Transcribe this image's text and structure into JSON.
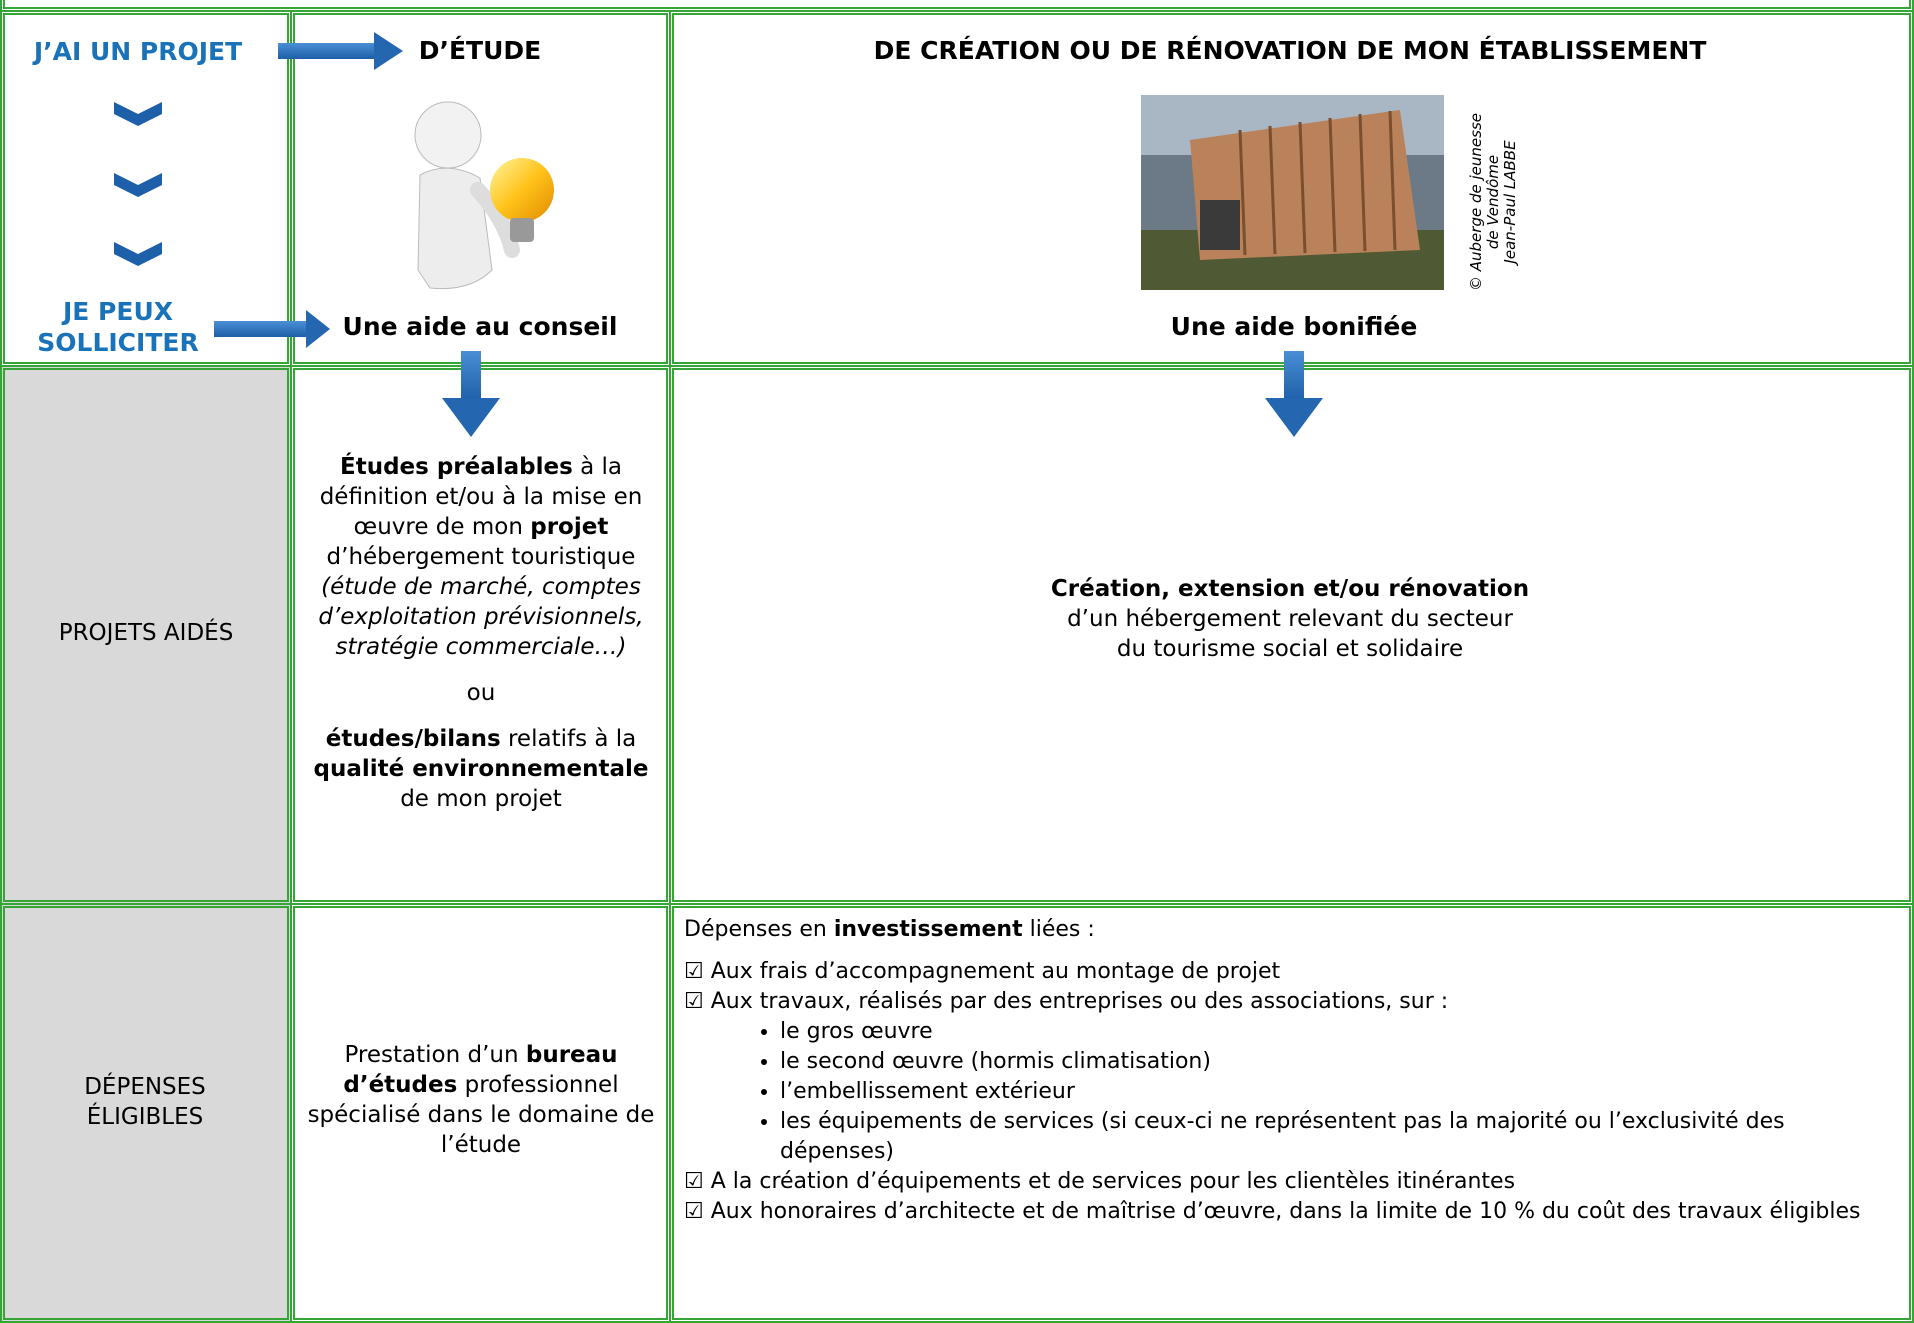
{
  "header": {
    "ask": "J’AI UN PROJET",
    "can_request": "JE PEUX SOLLICITER",
    "study_title": "D’ÉTUDE",
    "study_aid": "Une aide au conseil",
    "build_title": "DE CRÉATION OU DE RÉNOVATION DE MON ÉTABLISSEMENT",
    "photo_credit": [
      "© Auberge de jeunesse",
      "de Vendôme",
      "Jean-Paul LABBE"
    ],
    "build_aid": "Une aide bonifiée"
  },
  "rows": [
    {
      "label": "PROJETS AIDÉS",
      "study": [
        {
          "kind": "p",
          "segments": [
            {
              "text": "Études préalables",
              "bold": true
            },
            {
              "text": " à la définition et/ou à la mise en œuvre de mon "
            },
            {
              "text": "projet",
              "bold": true
            },
            {
              "text": " d’hébergement touristique "
            },
            {
              "text": "(étude de marché, comptes d’exploitation prévisionnels, stratégie commerciale…)",
              "italic": true
            }
          ]
        },
        {
          "kind": "p",
          "segments": [
            {
              "text": "ou"
            }
          ]
        },
        {
          "kind": "p",
          "segments": [
            {
              "text": "études/bilans",
              "bold": true
            },
            {
              "text": " relatifs à la "
            },
            {
              "text": "qualité environnementale",
              "bold": true
            },
            {
              "text": " de mon projet"
            }
          ]
        }
      ],
      "build": [
        {
          "kind": "line",
          "segments": [
            {
              "text": "Création, extension et/ou rénovation",
              "bold": true
            }
          ]
        },
        {
          "kind": "line",
          "segments": [
            {
              "text": "d’un hébergement relevant du secteur"
            }
          ]
        },
        {
          "kind": "line",
          "segments": [
            {
              "text": "du tourisme social et solidaire"
            }
          ]
        }
      ]
    },
    {
      "label": "DÉPENSES ÉLIGIBLES",
      "study": [
        {
          "kind": "p",
          "segments": [
            {
              "text": "Prestation d’un "
            },
            {
              "text": "bureau d’études",
              "bold": true
            },
            {
              "text": " professionnel spécialisé dans le domaine de l’étude"
            }
          ]
        }
      ],
      "build": [
        {
          "kind": "p",
          "segments": [
            {
              "text": "Dépenses en "
            },
            {
              "text": "investissement",
              "bold": true
            },
            {
              "text": " liées :"
            }
          ]
        },
        {
          "kind": "line",
          "segments": [
            {
              "text": "☑ Aux frais d’accompagnement au montage de projet"
            }
          ]
        },
        {
          "kind": "line",
          "segments": [
            {
              "text": "☑ Aux travaux, réalisés par des entreprises ou des associations, sur :"
            }
          ]
        },
        {
          "kind": "list",
          "items": [
            "le gros œuvre",
            "le second œuvre (hormis climatisation)",
            "l’embellissement extérieur",
            "les équipements de services (si ceux-ci ne représentent pas la majorité ou l’exclusivité des dépenses)"
          ]
        },
        {
          "kind": "line",
          "segments": [
            {
              "text": "☑ A la création d’équipements et de services pour les clientèles itinérantes"
            }
          ]
        },
        {
          "kind": "line",
          "segments": [
            {
              "text": "☑ Aux honoraires d’architecte et de maîtrise d’œuvre, dans la limite de 10 % du coût des travaux éligibles"
            }
          ]
        }
      ]
    }
  ]
}
